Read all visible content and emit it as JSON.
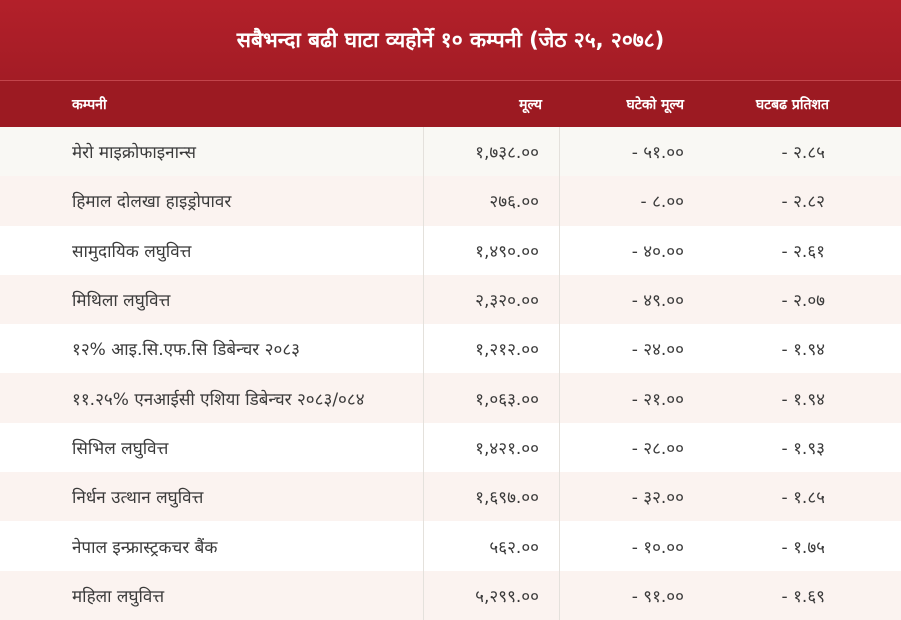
{
  "title": "सबैभन्दा बढी घाटा व्यहोर्ने १० कम्पनी (जेठ २५, २०७८)",
  "columns": [
    "कम्पनी",
    "मूल्य",
    "घटेको मूल्य",
    "घटबढ प्रतिशत"
  ],
  "rows": [
    {
      "company": "मेरो माइक्रोफाइनान्स",
      "price": "१,७३८.००",
      "change": "- ५१.००",
      "percent": "- २.८५"
    },
    {
      "company": "हिमाल दोलखा हाइड्रोपावर",
      "price": "२७६.००",
      "change": "- ८.००",
      "percent": "- २.८२"
    },
    {
      "company": "सामुदायिक लघुवित्त",
      "price": "१,४९०.००",
      "change": "- ४०.००",
      "percent": "- २.६१"
    },
    {
      "company": "मिथिला लघुवित्त",
      "price": "२,३२०.००",
      "change": "- ४९.००",
      "percent": "- २.०७"
    },
    {
      "company": "१२% आइ.सि.एफ.सि डिबेन्चर २०८३",
      "price": "१,२१२.००",
      "change": "- २४.००",
      "percent": "- १.९४"
    },
    {
      "company": "११.२५% एनआईसी एशिया डिबेन्चर २०८३/०८४",
      "price": "१,०६३.००",
      "change": "- २१.००",
      "percent": "- १.९४"
    },
    {
      "company": "सिभिल लघुवित्त",
      "price": "१,४२१.००",
      "change": "- २८.००",
      "percent": "- १.९३"
    },
    {
      "company": "निर्धन उत्थान लघुवित्त",
      "price": "१,६९७.००",
      "change": "- ३२.००",
      "percent": "- १.८५"
    },
    {
      "company": "नेपाल इन्फ्रास्ट्रकचर बैंक",
      "price": "५६२.००",
      "change": "- १०.००",
      "percent": "- १.७५"
    },
    {
      "company": "महिला लघुवित्त",
      "price": "५,२९९.००",
      "change": "- ९१.००",
      "percent": "- १.६९"
    }
  ]
}
